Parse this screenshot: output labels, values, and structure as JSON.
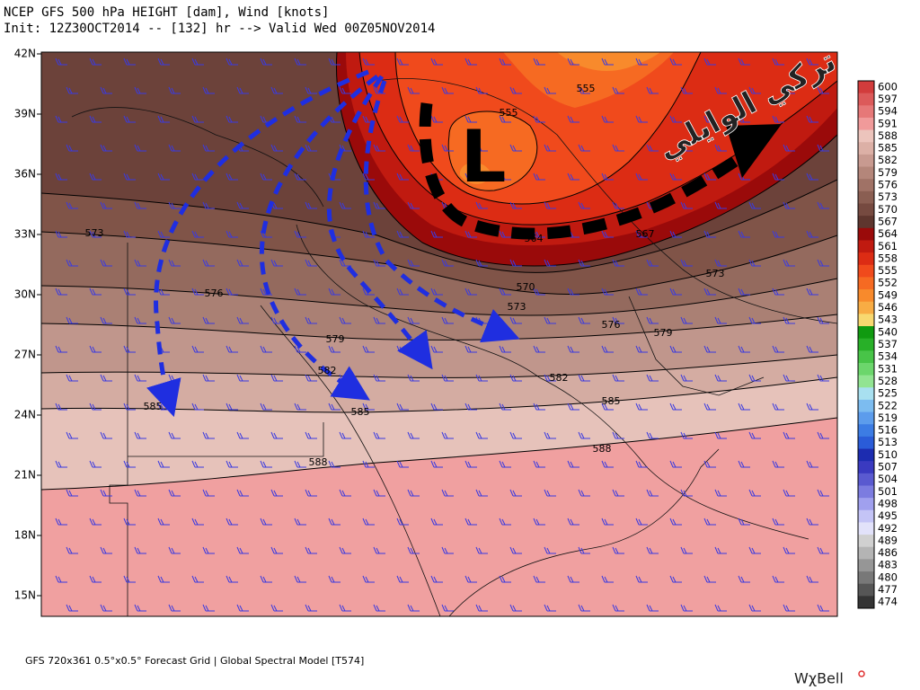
{
  "header": {
    "title": "NCEP GFS 500 hPa HEIGHT [dam], Wind [knots]",
    "subtitle": "Init: 12Z30OCT2014 -- [132] hr --> Valid Wed 00Z05NOV2014"
  },
  "latitude_labels": [
    "42N",
    "39N",
    "36N",
    "33N",
    "30N",
    "27N",
    "24N",
    "21N",
    "18N",
    "15N"
  ],
  "contour_labels": [
    "573",
    "576",
    "579",
    "582",
    "585",
    "585",
    "588",
    "588",
    "585",
    "582",
    "579",
    "576",
    "573",
    "573",
    "570",
    "564",
    "567",
    "555",
    "555"
  ],
  "low_label": "L",
  "annotation": "تركي الوايلي",
  "colorbar": [
    {
      "label": 600,
      "color": "#d23c3c"
    },
    {
      "label": 597,
      "color": "#dc5a5a"
    },
    {
      "label": 594,
      "color": "#e67878"
    },
    {
      "label": 591,
      "color": "#f09a9a"
    },
    {
      "label": 588,
      "color": "#ecc4bc"
    },
    {
      "label": 585,
      "color": "#dcb0a6"
    },
    {
      "label": 582,
      "color": "#c89a90"
    },
    {
      "label": 579,
      "color": "#b4867a"
    },
    {
      "label": 576,
      "color": "#a07266"
    },
    {
      "label": 573,
      "color": "#8a5e52"
    },
    {
      "label": 570,
      "color": "#764a40"
    },
    {
      "label": 567,
      "color": "#5e362e"
    },
    {
      "label": 564,
      "color": "#9a0a0a"
    },
    {
      "label": 561,
      "color": "#c01a10"
    },
    {
      "label": 558,
      "color": "#dc2c14"
    },
    {
      "label": 555,
      "color": "#f04a1c"
    },
    {
      "label": 552,
      "color": "#f66a22"
    },
    {
      "label": 549,
      "color": "#f88a2c"
    },
    {
      "label": 546,
      "color": "#f8ac44"
    },
    {
      "label": 543,
      "color": "#f8d870"
    },
    {
      "label": 540,
      "color": "#109a10"
    },
    {
      "label": 537,
      "color": "#28b028"
    },
    {
      "label": 534,
      "color": "#48c448"
    },
    {
      "label": 531,
      "color": "#6cd66c"
    },
    {
      "label": 528,
      "color": "#92e492"
    },
    {
      "label": 525,
      "color": "#a8e0f0"
    },
    {
      "label": 522,
      "color": "#7cbcf0"
    },
    {
      "label": 519,
      "color": "#5c9cec"
    },
    {
      "label": 516,
      "color": "#3c7ce4"
    },
    {
      "label": 513,
      "color": "#2a5cd8"
    },
    {
      "label": 510,
      "color": "#1c2cb0"
    },
    {
      "label": 507,
      "color": "#3a3ac0"
    },
    {
      "label": 504,
      "color": "#5a5ad0"
    },
    {
      "label": 501,
      "color": "#7c7ce0"
    },
    {
      "label": 498,
      "color": "#a0a0ee"
    },
    {
      "label": 495,
      "color": "#c4c4f6"
    },
    {
      "label": 492,
      "color": "#e2e2fa"
    },
    {
      "label": 489,
      "color": "#d0d0d0"
    },
    {
      "label": 486,
      "color": "#b4b4b4"
    },
    {
      "label": 483,
      "color": "#969696"
    },
    {
      "label": 480,
      "color": "#787878"
    },
    {
      "label": 477,
      "color": "#565656"
    },
    {
      "label": 474,
      "color": "#343434"
    }
  ],
  "footer": "GFS 720x361  0.5°x0.5° Forecast Grid | Global Spectral Model [T574]",
  "watermark": "WχBell"
}
